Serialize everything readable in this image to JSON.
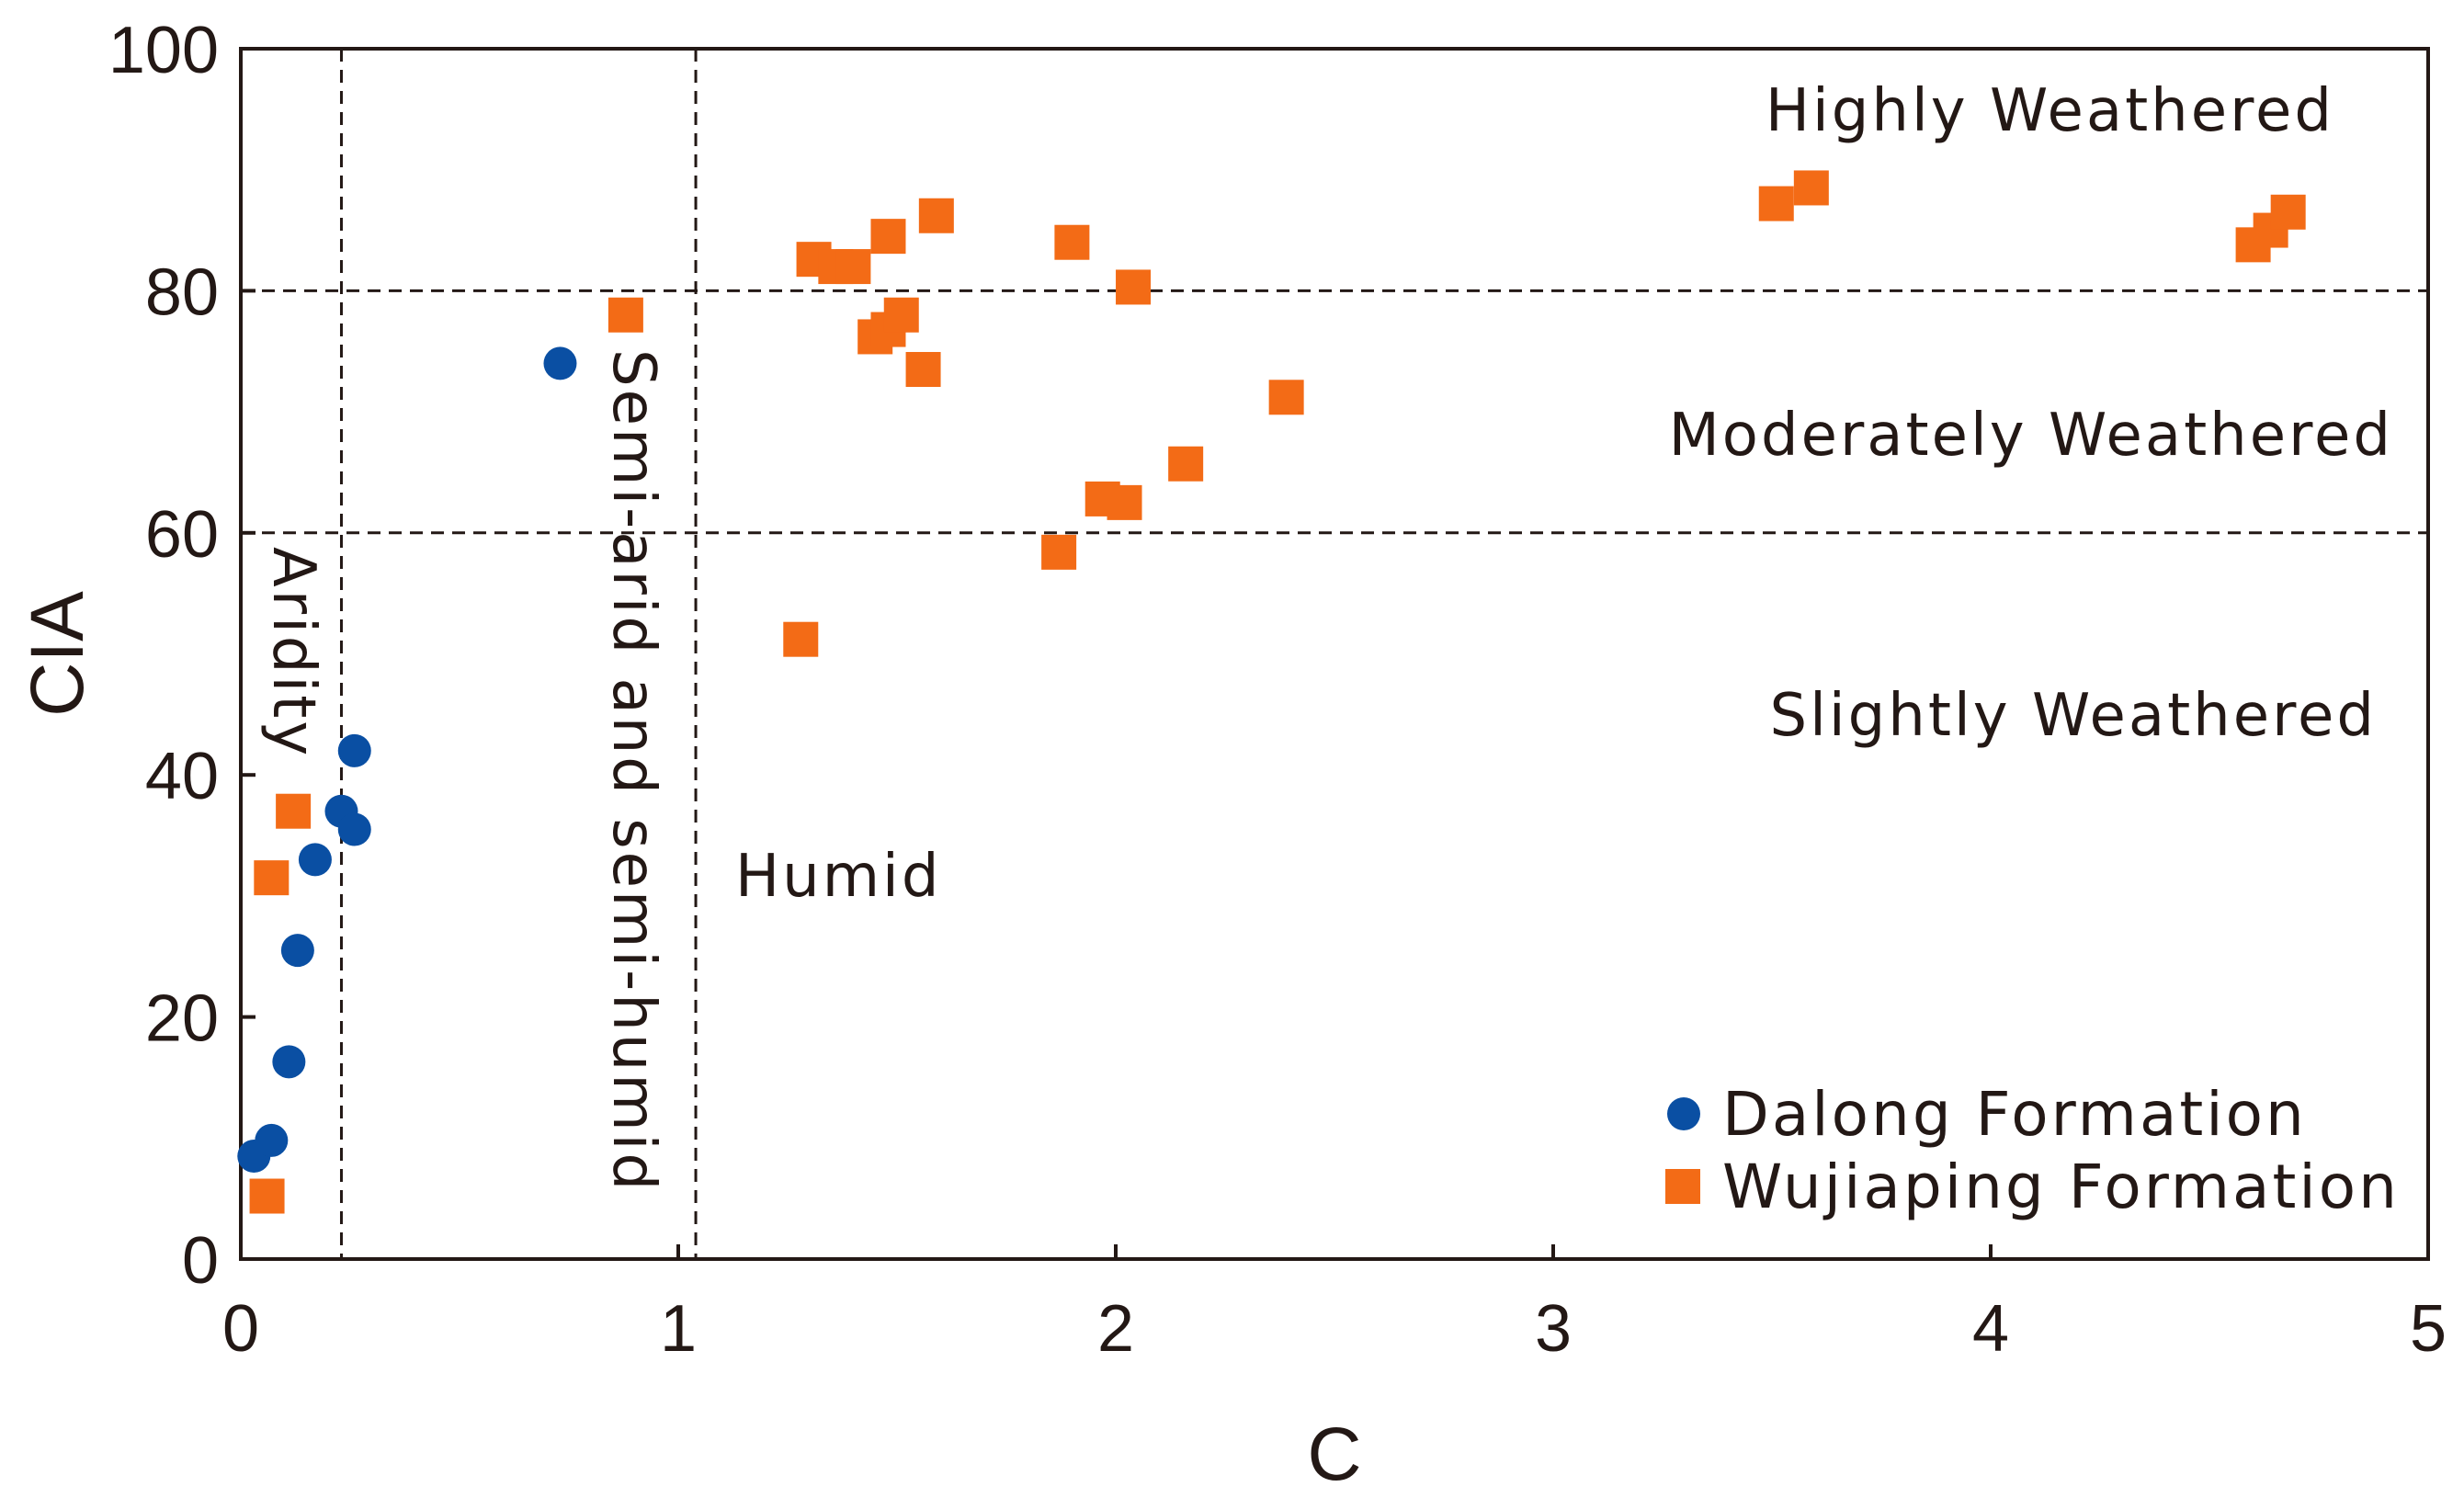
{
  "chart_data": {
    "type": "scatter",
    "title": "",
    "xlabel": "C",
    "ylabel": "CIA",
    "xlim": [
      0,
      5
    ],
    "ylim": [
      0,
      100
    ],
    "x_ticks": [
      "0",
      "1",
      "2",
      "3",
      "4",
      "5"
    ],
    "y_ticks": [
      "0",
      "20",
      "40",
      "60",
      "80",
      "100"
    ],
    "grid": false,
    "legend_position": "bottom-right",
    "boundaries": {
      "vertical": [
        0.23,
        1.04
      ],
      "horizontal": [
        60,
        80
      ]
    },
    "annotations": {
      "highly": "Highly Weathered",
      "moderately": "Moderately Weathered",
      "slightly": "Slightly Weathered",
      "aridity": "Aridity",
      "semi": "Semi-arid and semi-humid",
      "humid": "Humid"
    },
    "series": [
      {
        "name": "Dalong Formation",
        "marker": "circle",
        "color": "#0a4fa3",
        "points": [
          [
            0.03,
            8.5
          ],
          [
            0.07,
            9.8
          ],
          [
            0.11,
            16.3
          ],
          [
            0.13,
            25.5
          ],
          [
            0.17,
            33.0
          ],
          [
            0.23,
            37.0
          ],
          [
            0.26,
            35.5
          ],
          [
            0.26,
            42.0
          ],
          [
            0.73,
            74.0
          ]
        ]
      },
      {
        "name": "Wujiaping Formation",
        "marker": "square",
        "color": "#f36b16",
        "points": [
          [
            0.06,
            5.2
          ],
          [
            0.07,
            31.5
          ],
          [
            0.12,
            37.0
          ],
          [
            0.88,
            78.0
          ],
          [
            1.28,
            51.2
          ],
          [
            1.31,
            82.6
          ],
          [
            1.36,
            82.0
          ],
          [
            1.4,
            82.0
          ],
          [
            1.45,
            76.2
          ],
          [
            1.48,
            84.5
          ],
          [
            1.48,
            76.8
          ],
          [
            1.51,
            78.0
          ],
          [
            1.56,
            73.5
          ],
          [
            1.59,
            86.2
          ],
          [
            1.87,
            58.4
          ],
          [
            1.9,
            84.0
          ],
          [
            1.97,
            62.8
          ],
          [
            2.02,
            62.5
          ],
          [
            2.04,
            80.3
          ],
          [
            2.16,
            65.7
          ],
          [
            2.39,
            71.2
          ],
          [
            3.51,
            87.2
          ],
          [
            3.59,
            88.5
          ],
          [
            4.6,
            83.8
          ],
          [
            4.64,
            85.0
          ],
          [
            4.68,
            86.5
          ]
        ]
      }
    ]
  }
}
